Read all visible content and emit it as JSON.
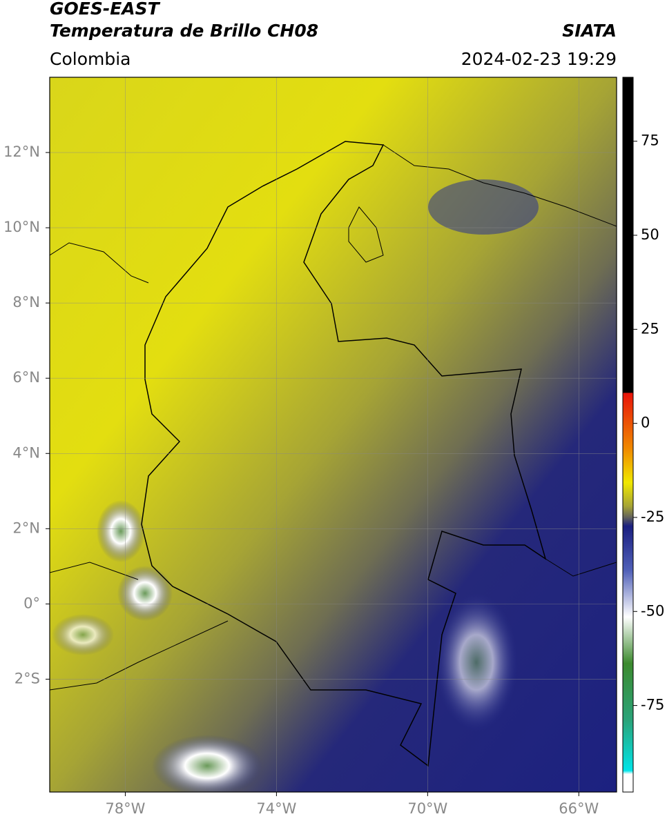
{
  "header": {
    "title": "GOES-EAST",
    "subtitle": "Temperatura de Brillo CH08",
    "source": "SIATA",
    "region": "Colombia",
    "datetime": "2024-02-23 19:29"
  },
  "map": {
    "lonlim": [
      -80,
      -65
    ],
    "latlim": [
      -5,
      14
    ],
    "lonticks": [
      {
        "value": -78,
        "label": "78°W"
      },
      {
        "value": -74,
        "label": "74°W"
      },
      {
        "value": -70,
        "label": "70°W"
      },
      {
        "value": -66,
        "label": "66°W"
      }
    ],
    "latticks": [
      {
        "value": 12,
        "label": "12°N"
      },
      {
        "value": 10,
        "label": "10°N"
      },
      {
        "value": 8,
        "label": "8°N"
      },
      {
        "value": 6,
        "label": "6°N"
      },
      {
        "value": 4,
        "label": "4°N"
      },
      {
        "value": 2,
        "label": "2°N"
      },
      {
        "value": 0,
        "label": "0°"
      },
      {
        "value": -2,
        "label": "2°S"
      }
    ],
    "grid": true
  },
  "colorbar": {
    "lim": [
      -98,
      92
    ],
    "ticks": [
      75,
      50,
      25,
      0,
      -25,
      -50,
      -75
    ]
  }
}
